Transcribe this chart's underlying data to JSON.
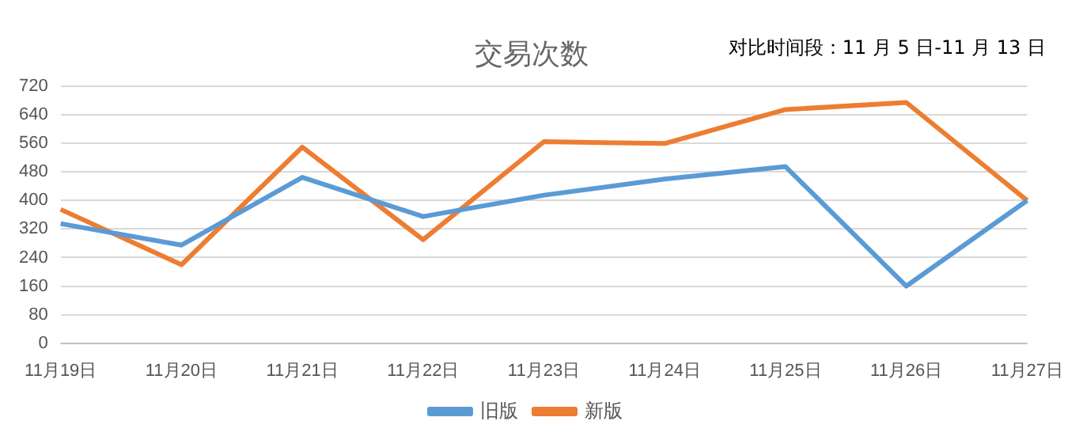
{
  "chart_data": {
    "type": "line",
    "title": "交易次数",
    "annotations": [
      "对比时间段：11 月 5 日-11 月 13 日"
    ],
    "categories": [
      "11月19日",
      "11月20日",
      "11月21日",
      "11月22日",
      "11月23日",
      "11月24日",
      "11月25日",
      "11月26日",
      "11月27日"
    ],
    "series": [
      {
        "name": "旧版",
        "color": "#5b9bd5",
        "values": [
          335,
          275,
          465,
          355,
          415,
          460,
          495,
          160,
          400
        ]
      },
      {
        "name": "新版",
        "color": "#ed7d31",
        "values": [
          375,
          220,
          550,
          290,
          565,
          560,
          655,
          675,
          400
        ]
      }
    ],
    "ylim": [
      0,
      720
    ],
    "yticks": [
      0,
      80,
      160,
      240,
      320,
      400,
      480,
      560,
      640,
      720
    ],
    "grid": "y",
    "legend": "bottom",
    "marker": "none",
    "line_style": "solid"
  }
}
